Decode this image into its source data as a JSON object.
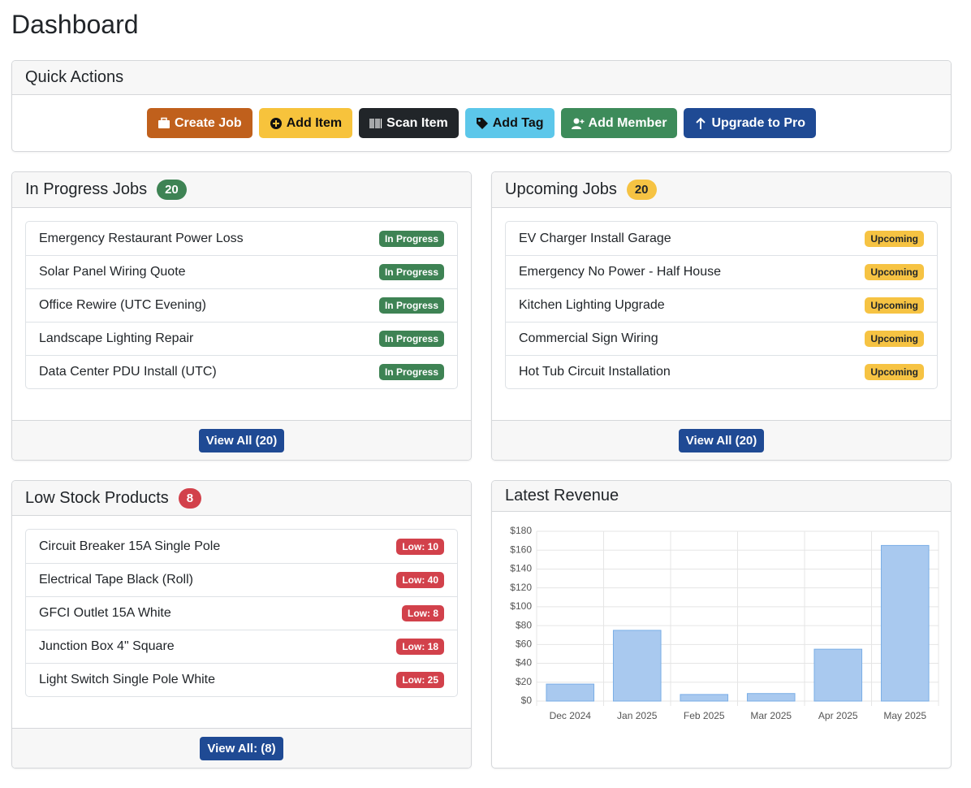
{
  "header": {
    "title": "Dashboard"
  },
  "quick_actions": {
    "title": "Quick Actions",
    "buttons": [
      "Create Job",
      "Add Item",
      "Scan Item",
      "Add Tag",
      "Add Member",
      "Upgrade to Pro"
    ]
  },
  "in_progress": {
    "title": "In Progress Jobs",
    "count": 20,
    "items": [
      {
        "name": "Emergency Restaurant Power Loss",
        "status": "In Progress"
      },
      {
        "name": "Solar Panel Wiring Quote",
        "status": "In Progress"
      },
      {
        "name": "Office Rewire (UTC Evening)",
        "status": "In Progress"
      },
      {
        "name": "Landscape Lighting Repair",
        "status": "In Progress"
      },
      {
        "name": "Data Center PDU Install (UTC)",
        "status": "In Progress"
      }
    ],
    "button": "View All (20)"
  },
  "upcoming": {
    "title": "Upcoming Jobs",
    "count": 20,
    "items": [
      {
        "name": "EV Charger Install Garage",
        "status": "Upcoming"
      },
      {
        "name": "Emergency No Power - Half House",
        "status": "Upcoming"
      },
      {
        "name": "Kitchen Lighting Upgrade",
        "status": "Upcoming"
      },
      {
        "name": "Commercial Sign Wiring",
        "status": "Upcoming"
      },
      {
        "name": "Hot Tub Circuit Installation",
        "status": "Upcoming"
      }
    ],
    "button": "View All (20)"
  },
  "low_stock": {
    "title": "Low Stock Products",
    "count": 8,
    "items": [
      {
        "name": "Circuit Breaker 15A Single Pole",
        "status": "Low: 10"
      },
      {
        "name": "Electrical Tape Black (Roll)",
        "status": "Low: 40"
      },
      {
        "name": "GFCI Outlet 15A White",
        "status": "Low: 8"
      },
      {
        "name": "Junction Box 4\" Square",
        "status": "Low: 18"
      },
      {
        "name": "Light Switch Single Pole White",
        "status": "Low: 25"
      }
    ],
    "button": "View All: (8)"
  },
  "chart_data": {
    "type": "bar",
    "title": "Latest Revenue",
    "categories": [
      "Dec 2024",
      "Jan 2025",
      "Feb 2025",
      "Mar 2025",
      "Apr 2025",
      "May 2025"
    ],
    "values": [
      18,
      75,
      7,
      8,
      55,
      165
    ],
    "color": "#a9c9ef",
    "ylim": [
      0,
      180
    ],
    "yticks": [
      {
        "value": 0,
        "label": "$0"
      },
      {
        "value": 20,
        "label": "$20"
      },
      {
        "value": 40,
        "label": "$40"
      },
      {
        "value": 60,
        "label": "$60"
      },
      {
        "value": 80,
        "label": "$80"
      },
      {
        "value": 100,
        "label": "$100"
      },
      {
        "value": 120,
        "label": "$120"
      },
      {
        "value": 140,
        "label": "$140"
      },
      {
        "value": 160,
        "label": "$160"
      },
      {
        "value": 180,
        "label": "$180"
      }
    ],
    "grid": true
  }
}
